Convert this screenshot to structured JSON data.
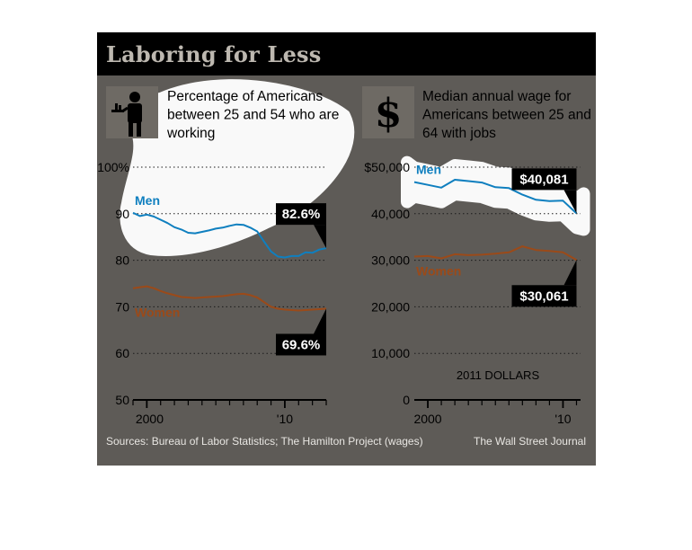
{
  "title": "Laboring for Less",
  "colors": {
    "panel_bg": "#5e5b57",
    "title_bg": "#000000",
    "title_text": "#bdb8b0",
    "men": "#0f7fbf",
    "women": "#9b4a19",
    "highlight": "#ffffff",
    "label_box": "#000000"
  },
  "chart_data": [
    {
      "type": "line",
      "title": "Percentage of Americans between 25 and 54 who are working",
      "icon": "waiter-icon",
      "ylim": [
        50,
        100
      ],
      "y_ticks": [
        "100%",
        "90",
        "80",
        "70",
        "60",
        "50"
      ],
      "x_ticks": [
        "2000",
        "'10"
      ],
      "grid": "dotted",
      "series": [
        {
          "name": "Men",
          "end_label": "82.6%",
          "x": [
            1999.0,
            1999.5,
            2000.0,
            2000.5,
            2001.0,
            2001.5,
            2002.0,
            2002.5,
            2003.0,
            2003.5,
            2004.0,
            2004.5,
            2005.0,
            2005.5,
            2006.0,
            2006.5,
            2007.0,
            2007.5,
            2008.0,
            2008.5,
            2009.0,
            2009.5,
            2010.0,
            2010.5,
            2011.0,
            2011.5,
            2012.0,
            2012.5,
            2013.0
          ],
          "values": [
            90.2,
            89.5,
            89.8,
            89.4,
            88.7,
            88.0,
            87.1,
            86.6,
            85.9,
            85.8,
            86.1,
            86.4,
            86.8,
            87.0,
            87.4,
            87.7,
            87.6,
            87.0,
            86.2,
            84.0,
            81.9,
            80.8,
            80.6,
            80.9,
            80.9,
            81.7,
            81.6,
            82.3,
            82.6
          ]
        },
        {
          "name": "Women",
          "end_label": "69.6%",
          "x": [
            1999.0,
            1999.5,
            2000.0,
            2000.5,
            2001.0,
            2001.5,
            2002.0,
            2002.5,
            2003.0,
            2003.5,
            2004.0,
            2004.5,
            2005.0,
            2005.5,
            2006.0,
            2006.5,
            2007.0,
            2007.5,
            2008.0,
            2008.5,
            2009.0,
            2009.5,
            2010.0,
            2010.5,
            2011.0,
            2011.5,
            2012.0,
            2012.5,
            2013.0
          ],
          "values": [
            74.0,
            74.2,
            74.4,
            74.0,
            73.4,
            72.9,
            72.5,
            72.1,
            72.0,
            71.9,
            72.0,
            72.1,
            72.2,
            72.3,
            72.5,
            72.7,
            72.8,
            72.5,
            72.0,
            71.0,
            70.0,
            69.6,
            69.4,
            69.3,
            69.2,
            69.3,
            69.4,
            69.5,
            69.6
          ]
        }
      ]
    },
    {
      "type": "line",
      "title": "Median annual wage for Americans between 25 and 64 with jobs",
      "icon": "dollar-icon",
      "ylim": [
        0,
        50000
      ],
      "y_ticks": [
        "$50,000",
        "40,000",
        "30,000",
        "20,000",
        "10,000",
        "0"
      ],
      "x_ticks": [
        "2000",
        "'10"
      ],
      "unit_note": "2011 DOLLARS",
      "grid": "dotted",
      "series": [
        {
          "name": "Men",
          "end_label": "$40,081",
          "x": [
            1999,
            2000,
            2001,
            2002,
            2003,
            2004,
            2005,
            2006,
            2007,
            2008,
            2009,
            2010,
            2011
          ],
          "values": [
            46800,
            46200,
            45600,
            47300,
            47000,
            46700,
            45700,
            45500,
            44100,
            43000,
            42700,
            42800,
            40081
          ]
        },
        {
          "name": "Women",
          "end_label": "$30,061",
          "x": [
            1999,
            2000,
            2001,
            2002,
            2003,
            2004,
            2005,
            2006,
            2007,
            2008,
            2009,
            2010,
            2011
          ],
          "values": [
            30800,
            30900,
            30400,
            31300,
            31100,
            31200,
            31400,
            31700,
            33000,
            32200,
            32000,
            31700,
            30061
          ]
        }
      ]
    }
  ],
  "footer": {
    "sources": "Sources: Bureau of Labor Statistics; The Hamilton Project (wages)",
    "publisher": "The Wall Street Journal"
  }
}
